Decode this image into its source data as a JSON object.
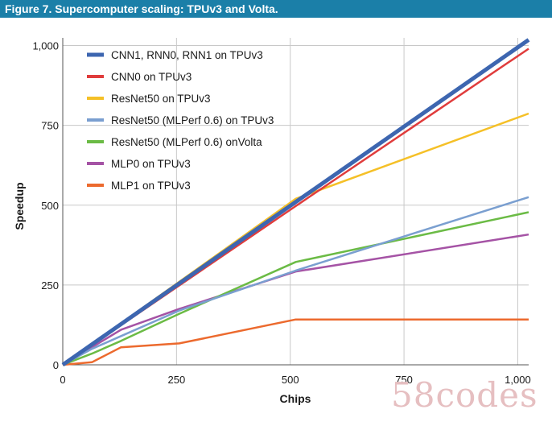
{
  "figure": {
    "title": "Figure 7. Supercomputer scaling: TPUv3 and Volta.",
    "header_color": "#1b7fa8"
  },
  "watermark": {
    "text": "58codes"
  },
  "chart_data": {
    "type": "line",
    "xlabel": "Chips",
    "ylabel": "Speedup",
    "xlim": [
      0,
      1024
    ],
    "ylim": [
      0,
      1024
    ],
    "xticks": [
      0,
      250,
      500,
      750,
      1000
    ],
    "yticks": [
      0,
      250,
      500,
      750,
      1000
    ],
    "xtick_labels": [
      "0",
      "250",
      "500",
      "750",
      "1,000"
    ],
    "ytick_labels": [
      "0",
      "250",
      "500",
      "750",
      "1,000"
    ],
    "grid": true,
    "legend_position": "top-left",
    "series": [
      {
        "name": "CNN1, RNN0, RNN1 on TPUv3",
        "color": "#3d66b0",
        "width": 5,
        "x": [
          0,
          512,
          1024
        ],
        "y": [
          0,
          510,
          1018
        ]
      },
      {
        "name": "CNN0 on TPUv3",
        "color": "#e03c3c",
        "width": 2.5,
        "x": [
          0,
          512,
          1024
        ],
        "y": [
          0,
          497,
          990
        ]
      },
      {
        "name": "ResNet50 on TPUv3",
        "color": "#f5c027",
        "width": 2.5,
        "x": [
          0,
          512,
          1024
        ],
        "y": [
          0,
          520,
          787
        ]
      },
      {
        "name": "ResNet50 (MLPerf 0.6) on TPUv3",
        "color": "#7a9fd0",
        "width": 2.5,
        "x": [
          0,
          64,
          128,
          256,
          512,
          1024
        ],
        "y": [
          0,
          50,
          90,
          170,
          295,
          525
        ]
      },
      {
        "name": "ResNet50 (MLPerf 0.6) onVolta",
        "color": "#6bbb45",
        "width": 2.5,
        "x": [
          0,
          64,
          128,
          256,
          512,
          1024
        ],
        "y": [
          0,
          35,
          75,
          160,
          322,
          478
        ]
      },
      {
        "name": "MLP0 on TPUv3",
        "color": "#a553a5",
        "width": 2.5,
        "x": [
          0,
          64,
          128,
          256,
          512,
          1024
        ],
        "y": [
          0,
          55,
          110,
          175,
          292,
          408
        ]
      },
      {
        "name": "MLP1 on TPUv3",
        "color": "#ec6a2e",
        "width": 2.5,
        "x": [
          0,
          64,
          128,
          256,
          512,
          1024
        ],
        "y": [
          0,
          8,
          55,
          67,
          142,
          142
        ]
      }
    ]
  }
}
